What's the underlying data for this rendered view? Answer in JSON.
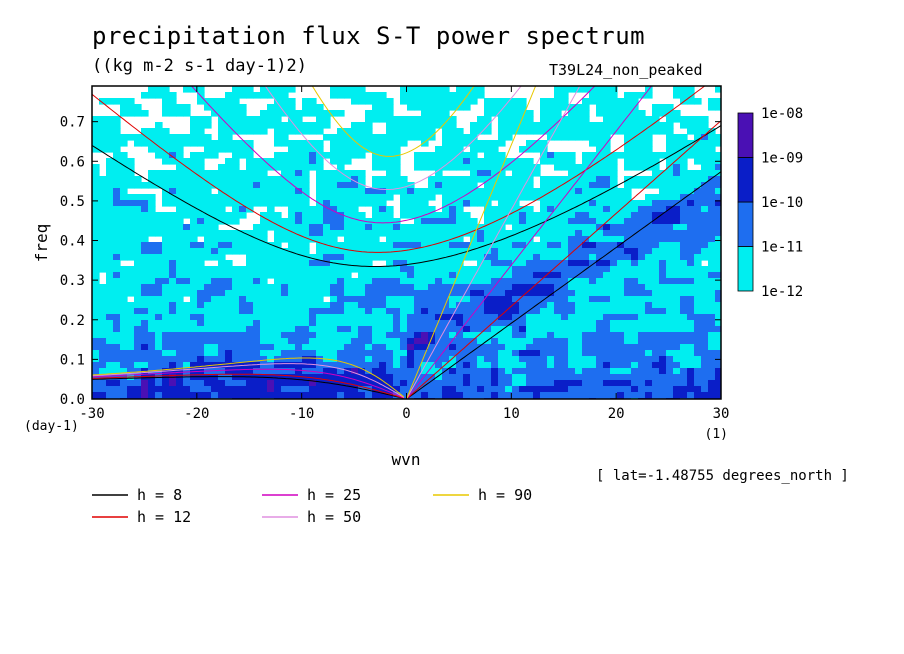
{
  "title": "precipitation flux S-T power spectrum",
  "subtitle": "((kg m-2 s-1 day-1)2)",
  "run_label": "T39L24_non_peaked",
  "lat_note": "[ lat=-1.48755 degrees_north ]",
  "chart_data": {
    "type": "heatmap",
    "title": "precipitation flux S-T power spectrum",
    "units": "((kg m-2 s-1 day-1)2)",
    "xlabel": "wvn",
    "ylabel": "freq",
    "x_units": "(1)",
    "y_units": "(day-1)",
    "xlim": [
      -30,
      30
    ],
    "ylim": [
      0,
      0.79
    ],
    "x_ticks": [
      -30,
      -20,
      -10,
      0,
      10,
      20,
      30
    ],
    "y_ticks": [
      0.0,
      0.1,
      0.2,
      0.3,
      0.4,
      0.5,
      0.6,
      0.7
    ],
    "x_tick_labels": [
      "-30",
      "-20",
      "-10",
      "0",
      "10",
      "20",
      "30"
    ],
    "y_tick_labels": [
      "0.0",
      "0.1",
      "0.2",
      "0.3",
      "0.4",
      "0.5",
      "0.6",
      "0.7"
    ],
    "colorbar": {
      "labels": [
        "1e-08",
        "1e-09",
        "1e-10",
        "1e-11",
        "1e-12"
      ],
      "levels": [
        1e-12,
        1e-11,
        1e-10,
        1e-09,
        1e-08
      ],
      "colors": [
        "#00eef0",
        "#1e6ef0",
        "#0a1ec8",
        "#4a10b4"
      ]
    },
    "dispersion_curves": [
      {
        "name": "h =  8",
        "h": 8,
        "color": "#000000"
      },
      {
        "name": "h = 12",
        "h": 12,
        "color": "#e00000"
      },
      {
        "name": "h = 25",
        "h": 25,
        "color": "#d000c0"
      },
      {
        "name": "h = 50",
        "h": 50,
        "color": "#e090e0"
      },
      {
        "name": "h = 90",
        "h": 90,
        "color": "#e8c800"
      }
    ]
  }
}
